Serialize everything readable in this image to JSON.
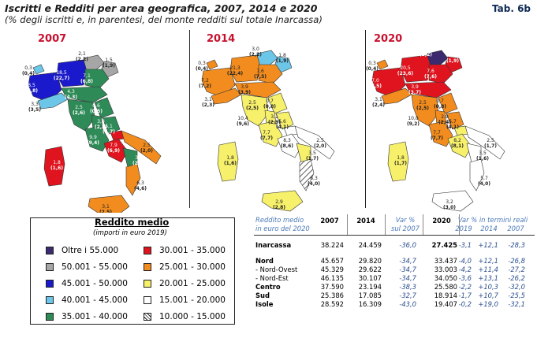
{
  "header": {
    "title": "Iscritti e Redditi per area geografica, 2007, 2014 e 2020",
    "subtitle": "(% degli iscritti e, in parentesi, del monte redditi sul totale Inarcassa)",
    "tab": "Tab. 6b"
  },
  "maps": [
    {
      "year": "2007",
      "labels": [
        [
          "0,3",
          "(0,4)"
        ],
        [
          "2,1",
          "(2,2)"
        ],
        [
          "1,5",
          "(1,9)"
        ],
        [
          "18,5",
          "(22,7)"
        ],
        [
          "8,5",
          "(8,8)"
        ],
        [
          "7,1",
          "(6,8)"
        ],
        [
          "4,3",
          "(4,3)"
        ],
        [
          "3,3",
          "(3,5)"
        ],
        [
          "2,5",
          "(2,6)"
        ],
        [
          "9,0",
          "(9,4)"
        ],
        [
          "0,6",
          "(0,5)"
        ],
        [
          "3,3",
          "(2,8)"
        ],
        [
          "5,1",
          "(4,7)"
        ],
        [
          "9,9",
          "(9,4)"
        ],
        [
          "7,9",
          "(6,9)"
        ],
        [
          "2,5",
          "(2,0)"
        ],
        [
          "3,4",
          "(2,7)"
        ],
        [
          "6,3",
          "(4,6)"
        ],
        [
          "3,1",
          "(2,5)"
        ],
        [
          "1,8",
          "(1,6)"
        ]
      ]
    },
    {
      "year": "2014",
      "labels": [
        [
          "0,3",
          "(0,4)"
        ],
        [
          "3,0",
          "(2,2)"
        ],
        [
          "1,8",
          "(1,9)"
        ],
        [
          "21,3",
          "(22,4)"
        ],
        [
          "7,2",
          "(7,2)"
        ],
        [
          "7,6",
          "(7,5)"
        ],
        [
          "3,9",
          "(3,9)"
        ],
        [
          "3,1",
          "(2,3)"
        ],
        [
          "2,5",
          "(2,5)"
        ],
        [
          "10,4",
          "(9,6)"
        ],
        [
          "0,7",
          "(0,8)"
        ],
        [
          "3,1",
          "(2,9)"
        ],
        [
          "5,6",
          "(4,1)"
        ],
        [
          "7,7",
          "(7,7)"
        ],
        [
          "8,3",
          "(8,6)"
        ],
        [
          "2,5",
          "(2,0)"
        ],
        [
          "3,5",
          "(1,7)"
        ],
        [
          "6,3",
          "(4,0)"
        ],
        [
          "2,9",
          "(2,8)"
        ],
        [
          "1,8",
          "(1,6)"
        ]
      ]
    },
    {
      "year": "2020",
      "labels": [
        [
          "0,3",
          "(0,4)"
        ],
        [
          "3,0",
          "(2,2)"
        ],
        [
          "1,8",
          "(1,9)"
        ],
        [
          "20,5",
          "(23,6)"
        ],
        [
          "7,0",
          "(7,5)"
        ],
        [
          "7,6",
          "(7,6)"
        ],
        [
          "3,9",
          "(3,7)"
        ],
        [
          "3,1",
          "(2,4)"
        ],
        [
          "2,5",
          "(2,5)"
        ],
        [
          "10,0",
          "(9,2)"
        ],
        [
          "0,7",
          "(0,8)"
        ],
        [
          "2,9",
          "(2,4)"
        ],
        [
          "5,7",
          "(4,1)"
        ],
        [
          "7,7",
          "(7,7)"
        ],
        [
          "8,2",
          "(8,1)"
        ],
        [
          "2,5",
          "(1,7)"
        ],
        [
          "3,5",
          "(1,6)"
        ],
        [
          "5,7",
          "(4,0)"
        ],
        [
          "3,2",
          "(3,0)"
        ],
        [
          "1,8",
          "(1,7)"
        ]
      ]
    }
  ],
  "legend": {
    "title": "Reddito medio",
    "subtitle": "(importi in euro 2019)",
    "items": [
      {
        "label": "Oltre i 55.000",
        "color": "#3b2a6e"
      },
      {
        "label": "50.001 - 55.000",
        "color": "#a6a6a6"
      },
      {
        "label": "45.001 - 50.000",
        "color": "#1a1acc"
      },
      {
        "label": "40.001 - 45.000",
        "color": "#6cc6e8"
      },
      {
        "label": "35.001 - 40.000",
        "color": "#2e8b57"
      },
      {
        "label": "30.001 - 35.000",
        "color": "#e0141e"
      },
      {
        "label": "25.001 - 30.000",
        "color": "#f28c1e"
      },
      {
        "label": "20.001 - 25.000",
        "color": "#f7f06a"
      },
      {
        "label": "15.001 - 20.000",
        "color": "#ffffff"
      },
      {
        "label": "10.000 - 15.000",
        "color": "hatch"
      }
    ]
  },
  "chart_data": {
    "type": "table",
    "columns": [
      "Reddito medio in euro del 2020",
      "2007",
      "2014",
      "Var % sul 2007",
      "2020",
      "Var % in termini reali 2019",
      "2014",
      "2007"
    ],
    "header_left": [
      "Reddito medio",
      "in euro del 2020"
    ],
    "header_var": [
      "Var %",
      "sul 2007"
    ],
    "header_real": [
      "Var % in termini reali",
      "2019",
      "2014",
      "2007"
    ],
    "rows": [
      {
        "label": "Inarcassa",
        "bold": true,
        "v2007": "38.224",
        "v2014": "24.459",
        "var": "-36,0",
        "v2020": "27.425",
        "r2019": "-3,1",
        "r2014": "+12,1",
        "r2007": "-28,3"
      },
      {
        "label": "Nord",
        "bold": true,
        "v2007": "45.657",
        "v2014": "29.820",
        "var": "-34,7",
        "v2020": "33.437",
        "r2019": "-4,0",
        "r2014": "+12,1",
        "r2007": "-26,8"
      },
      {
        "label": "- Nord-Ovest",
        "bold": false,
        "v2007": "45.329",
        "v2014": "29.622",
        "var": "-34,7",
        "v2020": "33.003",
        "r2019": "-4,2",
        "r2014": "+11,4",
        "r2007": "-27,2"
      },
      {
        "label": "- Nord-Est",
        "bold": false,
        "v2007": "46.135",
        "v2014": "30.107",
        "var": "-34,7",
        "v2020": "34.050",
        "r2019": "-3,6",
        "r2014": "+13,1",
        "r2007": "-26,2"
      },
      {
        "label": "Centro",
        "bold": true,
        "v2007": "37.590",
        "v2014": "23.194",
        "var": "-38,3",
        "v2020": "25.580",
        "r2019": "-2,2",
        "r2014": "+10,3",
        "r2007": "-32,0"
      },
      {
        "label": "Sud",
        "bold": true,
        "v2007": "25.386",
        "v2014": "17.085",
        "var": "-32,7",
        "v2020": "18.914",
        "r2019": "-1,7",
        "r2014": "+10,7",
        "r2007": "-25,5"
      },
      {
        "label": "Isole",
        "bold": true,
        "v2007": "28.592",
        "v2014": "16.309",
        "var": "-43,0",
        "v2020": "19.407",
        "r2019": "-0,2",
        "r2014": "+19,0",
        "r2007": "-32,1"
      }
    ]
  }
}
